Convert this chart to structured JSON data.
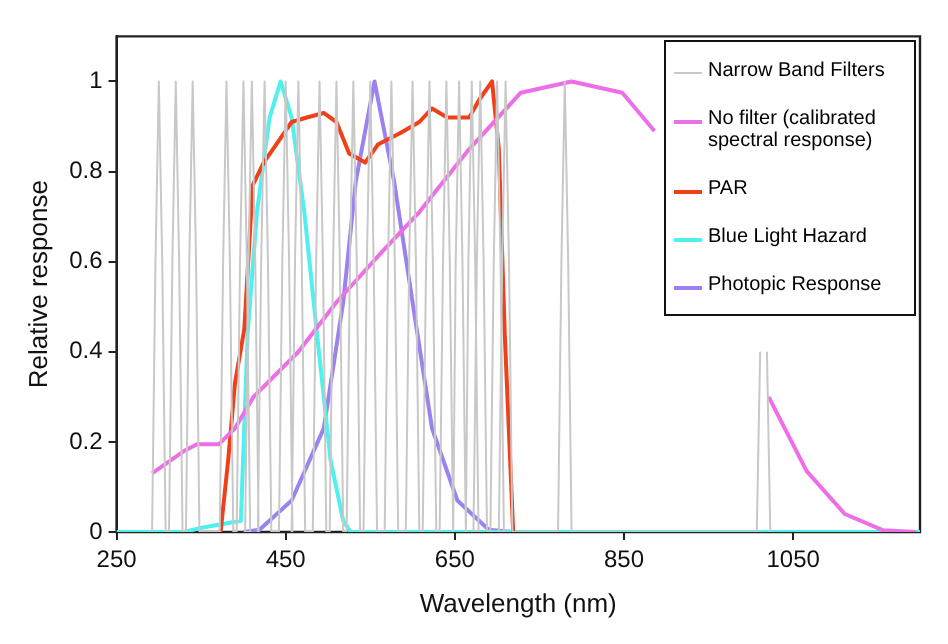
{
  "chart_data": {
    "type": "line",
    "xlabel": "Wavelength (nm)",
    "ylabel": "Relative response",
    "xlim": [
      250,
      1200
    ],
    "xticks": [
      250,
      450,
      650,
      850,
      1050
    ],
    "ylim": [
      0,
      1.1
    ],
    "yticks": [
      0,
      0.2,
      0.4,
      0.6,
      0.8,
      1
    ],
    "grid": false,
    "legend": "top right",
    "marker": "none",
    "line_style": "solid",
    "series": [
      {
        "name": "Narrow Band Filters",
        "color": "#c8c8c8",
        "x": [
          292,
          296,
          300,
          304,
          308,
          312,
          316,
          320,
          324,
          328,
          332,
          336,
          340,
          344,
          348,
          372,
          376,
          380,
          384,
          388,
          392,
          396,
          400,
          404,
          408,
          402,
          406,
          410,
          414,
          418,
          417,
          421,
          425,
          429,
          433,
          442,
          446,
          450,
          454,
          458,
          457,
          461,
          465,
          469,
          473,
          482,
          486,
          490,
          494,
          498,
          502,
          506,
          510,
          514,
          518,
          522,
          526,
          530,
          534,
          538,
          542,
          546,
          550,
          554,
          558,
          567,
          571,
          575,
          579,
          583,
          592,
          596,
          600,
          604,
          608,
          612,
          616,
          620,
          624,
          628,
          632,
          636,
          640,
          644,
          648,
          647,
          651,
          655,
          659,
          663,
          662,
          666,
          670,
          674,
          678,
          672,
          676,
          680,
          684,
          688,
          692,
          696,
          700,
          704,
          708,
          702,
          706,
          710,
          714,
          718,
          772,
          776,
          780,
          784,
          788,
          1007,
          1011,
          1015,
          1019,
          1023
        ],
        "values": [
          0,
          0.6,
          1,
          0.6,
          0,
          0,
          0.6,
          1,
          0.6,
          0,
          0,
          0.6,
          1,
          0.6,
          0,
          0,
          0.6,
          1,
          0.6,
          0,
          0,
          0.6,
          1,
          0.6,
          0,
          0,
          0.6,
          1,
          0.6,
          0,
          0,
          0.6,
          1,
          0.6,
          0,
          0,
          0.6,
          1,
          0.6,
          0,
          0,
          0.6,
          1,
          0.6,
          0,
          0,
          0.6,
          1,
          0.6,
          0,
          0,
          0.6,
          1,
          0.6,
          0,
          0,
          0.6,
          1,
          0.6,
          0,
          0,
          0.6,
          1,
          0.6,
          0,
          0,
          0.6,
          1,
          0.6,
          0,
          0,
          0.6,
          1,
          0.6,
          0,
          0,
          0.6,
          1,
          0.6,
          0,
          0,
          0.6,
          1,
          0.6,
          0,
          0,
          0.6,
          1,
          0.6,
          0,
          0,
          0.6,
          1,
          0.6,
          0,
          0,
          0.6,
          1,
          0.6,
          0,
          0,
          0.6,
          1,
          0.6,
          0,
          0,
          0.6,
          1,
          0.6,
          0,
          0,
          0.6,
          1,
          0.6,
          0,
          0,
          0.4,
          null,
          0.4,
          0
        ]
      },
      {
        "name": "No filter (calibrated spectral response)",
        "color": "#ee6ee8",
        "x": [
          292,
          330,
          345,
          371,
          390,
          412,
          465,
          510,
          563,
          608,
          667,
          728,
          788,
          848,
          886,
          931,
          976,
          1021,
          1066,
          1111,
          1156,
          1195
        ],
        "values": [
          0.13,
          0.18,
          0.195,
          0.195,
          0.23,
          0.3,
          0.4,
          0.51,
          0.62,
          0.71,
          0.85,
          0.975,
          1,
          0.975,
          0.89,
          null,
          null,
          0.3,
          0.135,
          0.04,
          0.004,
          0
        ]
      },
      {
        "name": "PAR",
        "color": "#f0401a",
        "x": [
          373,
          382,
          390,
          401,
          411,
          424,
          446,
          457,
          475,
          495,
          510,
          525,
          544,
          559,
          585,
          608,
          623,
          641,
          667,
          679,
          694,
          702,
          709,
          719
        ],
        "values": [
          0,
          0.16,
          0.33,
          0.45,
          0.77,
          0.82,
          0.88,
          0.91,
          0.92,
          0.93,
          0.91,
          0.84,
          0.82,
          0.86,
          0.885,
          0.91,
          0.94,
          0.92,
          0.92,
          0.96,
          1,
          0.85,
          0.44,
          0
        ]
      },
      {
        "name": "Blue Light Hazard",
        "color": "#4ff0ee",
        "x": [
          250,
          330,
          352,
          397,
          405,
          416,
          431,
          444,
          457,
          472,
          487,
          503,
          518,
          527,
          1200
        ],
        "values": [
          0,
          0,
          0.01,
          0.025,
          0.44,
          0.71,
          0.92,
          1,
          0.92,
          0.71,
          0.44,
          0.16,
          0.025,
          0,
          0
        ]
      },
      {
        "name": "Photopic Response",
        "color": "#9b82ee",
        "x": [
          400,
          419,
          457,
          495,
          518,
          533,
          555,
          578,
          600,
          623,
          653,
          690,
          720
        ],
        "values": [
          0,
          0.005,
          0.07,
          0.23,
          0.51,
          0.78,
          1,
          0.78,
          0.51,
          0.23,
          0.07,
          0.005,
          0
        ]
      }
    ]
  }
}
